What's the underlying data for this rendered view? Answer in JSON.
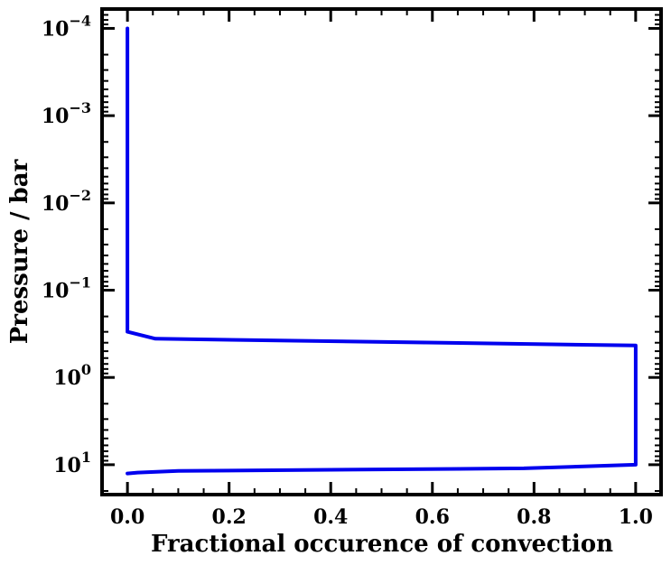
{
  "chart_data": {
    "type": "line",
    "title": "",
    "xlabel": "Fractional occurence of convection",
    "ylabel": "Pressure / bar",
    "xlim": [
      -0.05,
      1.05
    ],
    "ylim": [
      6e-05,
      22
    ],
    "y_scale": "log",
    "y_inverted": true,
    "grid": false,
    "x_ticks": [
      0.0,
      0.2,
      0.4,
      0.6,
      0.8,
      1.0
    ],
    "x_tick_labels": [
      "0.0",
      "0.2",
      "0.4",
      "0.6",
      "0.8",
      "1.0"
    ],
    "y_ticks": [
      0.0001,
      0.001,
      0.01,
      0.1,
      1,
      10
    ],
    "y_tick_labels": [
      {
        "base": "10",
        "exp": "−4"
      },
      {
        "base": "10",
        "exp": "−3"
      },
      {
        "base": "10",
        "exp": "−2"
      },
      {
        "base": "10",
        "exp": "−1"
      },
      {
        "base": "10",
        "exp": "0"
      },
      {
        "base": "10",
        "exp": "1"
      }
    ],
    "series": [
      {
        "color": "#0000ee",
        "points": [
          {
            "x": 0.0,
            "y": 0.0001
          },
          {
            "x": 0.0,
            "y": 0.3
          },
          {
            "x": 0.055,
            "y": 0.36
          },
          {
            "x": 1.0,
            "y": 0.43
          },
          {
            "x": 1.0,
            "y": 10.0
          },
          {
            "x": 0.78,
            "y": 11.0
          },
          {
            "x": 0.1,
            "y": 11.8
          },
          {
            "x": 0.02,
            "y": 12.3
          },
          {
            "x": 0.0,
            "y": 12.6
          }
        ]
      }
    ]
  }
}
